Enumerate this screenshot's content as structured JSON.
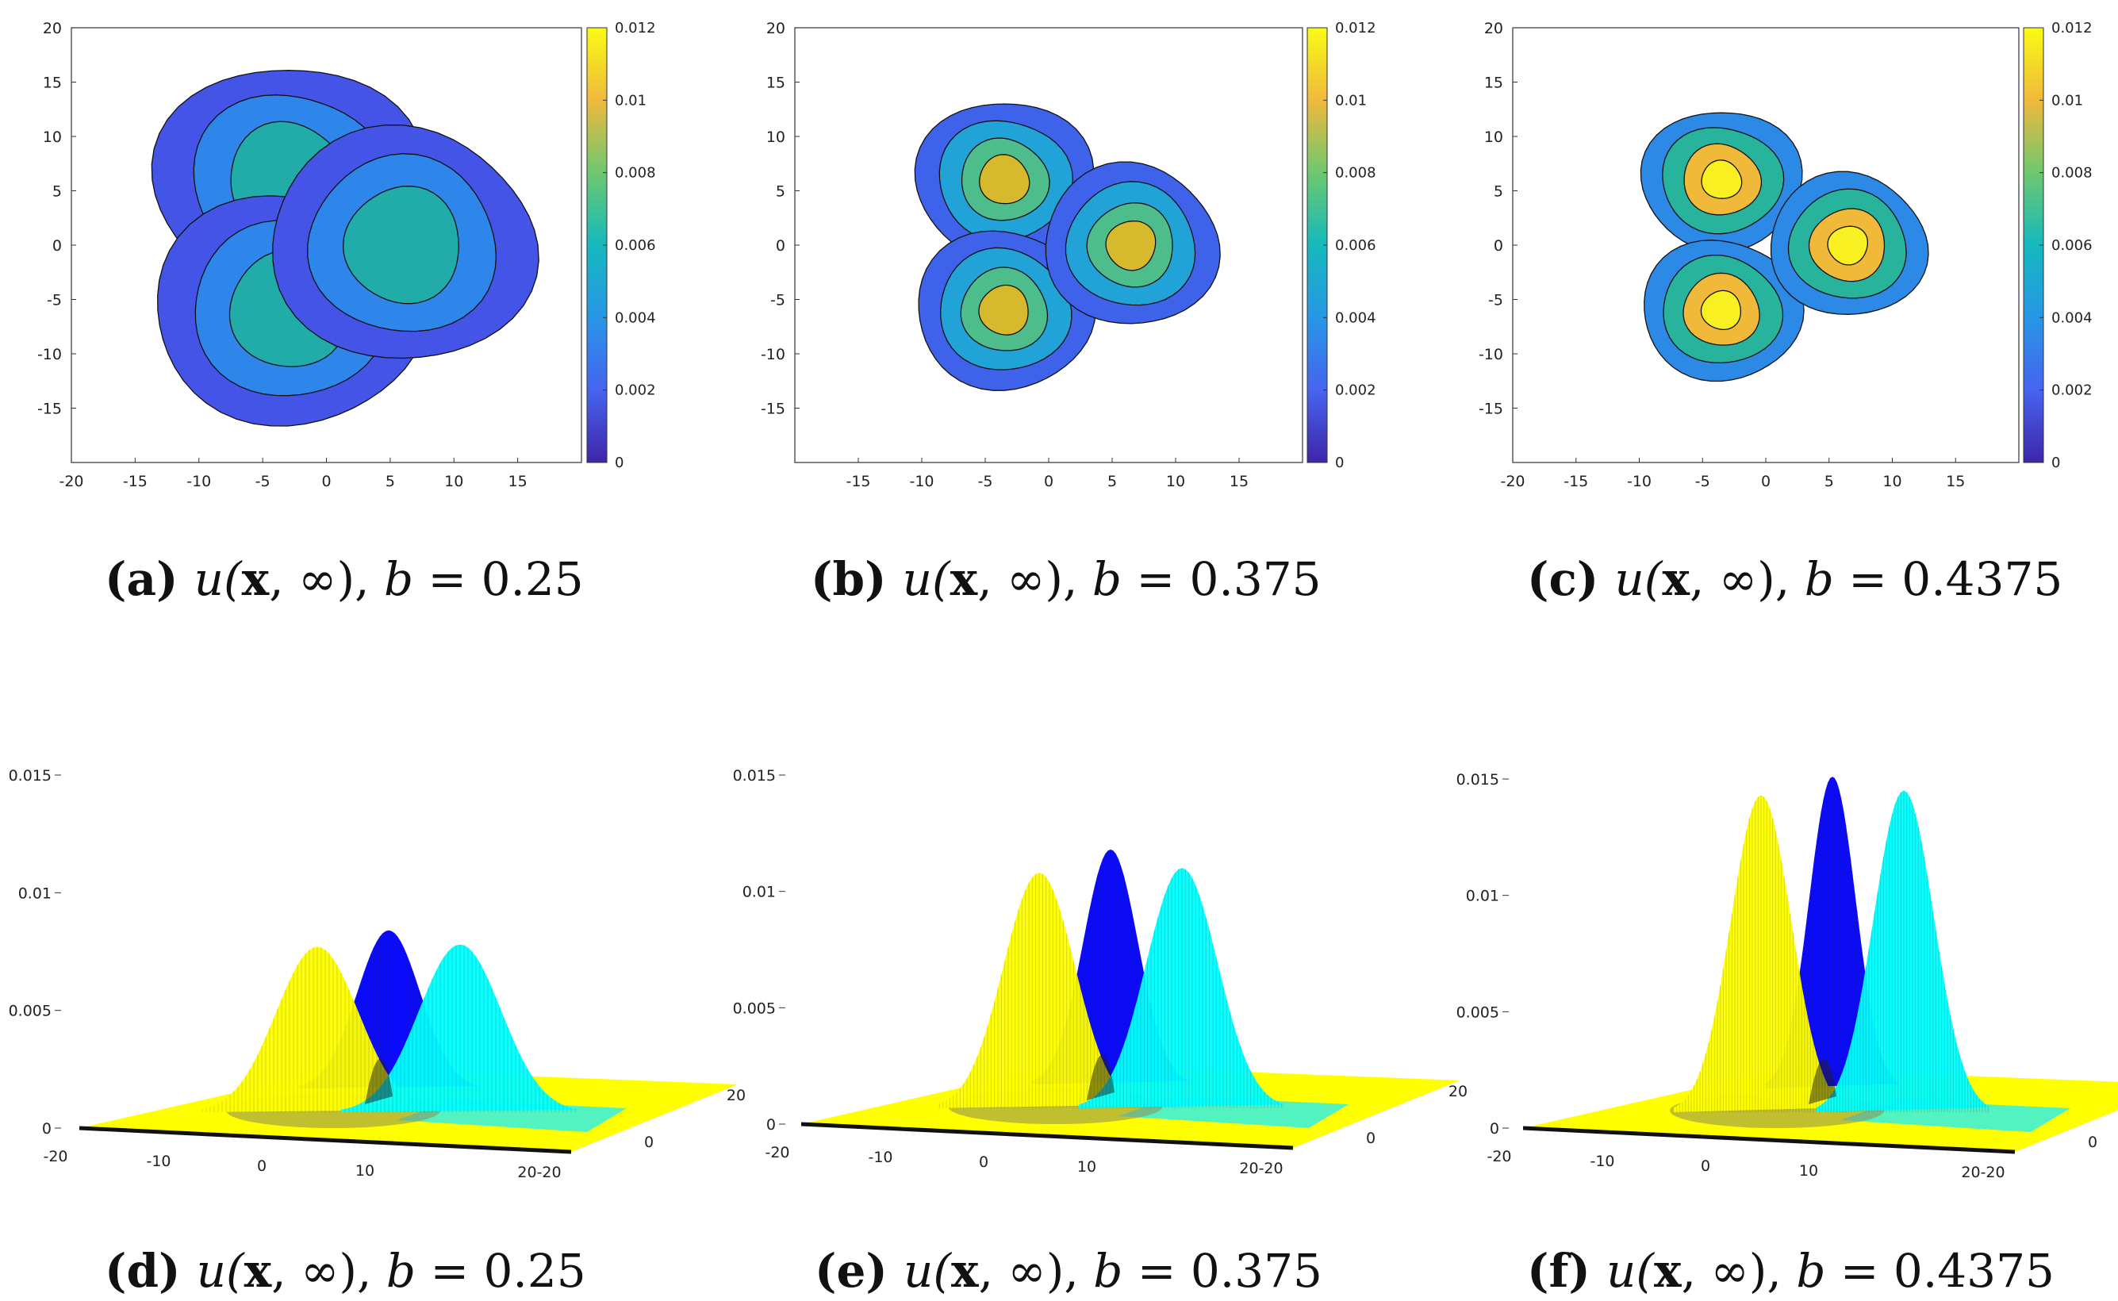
{
  "chart_data": [
    {
      "id": "a",
      "type": "contour",
      "label": "(a)",
      "title_parts": [
        "u(",
        "x",
        ", ∞), ",
        "b",
        " = 0.25"
      ],
      "b": 0.25,
      "xlim": [
        -20,
        20
      ],
      "ylim": [
        -20,
        20
      ],
      "xticks": [
        -20,
        -15,
        -10,
        -5,
        0,
        5,
        10,
        15
      ],
      "yticks": [
        20,
        15,
        10,
        5,
        0,
        -5,
        -10,
        -15
      ],
      "colorbar": {
        "ticks": [
          "0.012",
          "0.01",
          "0.008",
          "0.006",
          "0.004",
          "0.002",
          "0"
        ],
        "range": [
          0,
          0.012
        ]
      },
      "blobs": [
        {
          "center": [
            -3,
            6
          ],
          "levels": [
            0.002,
            0.004,
            0.006
          ]
        },
        {
          "center": [
            -3,
            -6
          ],
          "levels": [
            0.002,
            0.004,
            0.006
          ]
        },
        {
          "center": [
            6,
            0
          ],
          "levels": [
            0.002,
            0.004,
            0.006
          ]
        }
      ]
    },
    {
      "id": "b",
      "type": "contour",
      "label": "(b)",
      "title_parts": [
        "u(",
        "x",
        ", ∞), ",
        "b",
        " = 0.375"
      ],
      "b": 0.375,
      "xlim": [
        -20,
        20
      ],
      "ylim": [
        -20,
        20
      ],
      "xticks": [
        -15,
        -10,
        -5,
        0,
        5,
        10,
        15
      ],
      "yticks": [
        20,
        15,
        10,
        5,
        0,
        -5,
        -10,
        -15
      ],
      "colorbar": {
        "ticks": [
          "0.012",
          "0.01",
          "0.008",
          "0.006",
          "0.004",
          "0.002",
          "0"
        ],
        "range": [
          0,
          0.012
        ]
      },
      "blobs": [
        {
          "center": [
            -3.5,
            6
          ],
          "levels": [
            0.002,
            0.004,
            0.006,
            0.008
          ]
        },
        {
          "center": [
            -3.5,
            -6
          ],
          "levels": [
            0.002,
            0.004,
            0.006,
            0.008
          ]
        },
        {
          "center": [
            6.5,
            0
          ],
          "levels": [
            0.002,
            0.004,
            0.006,
            0.008
          ]
        }
      ]
    },
    {
      "id": "c",
      "type": "contour",
      "label": "(c)",
      "title_parts": [
        "u(",
        "x",
        ", ∞), ",
        "b",
        " = 0.4375"
      ],
      "b": 0.4375,
      "xlim": [
        -20,
        20
      ],
      "ylim": [
        -20,
        20
      ],
      "xticks": [
        -20,
        -15,
        -10,
        -5,
        0,
        5,
        10,
        15
      ],
      "yticks": [
        20,
        15,
        10,
        5,
        0,
        -5,
        -10,
        -15
      ],
      "colorbar": {
        "ticks": [
          "0.012",
          "0.01",
          "0.008",
          "0.006",
          "0.004",
          "0.002",
          "0"
        ],
        "range": [
          0,
          0.012
        ]
      },
      "blobs": [
        {
          "center": [
            -3.5,
            6
          ],
          "levels": [
            0.004,
            0.006,
            0.008,
            0.01
          ]
        },
        {
          "center": [
            -3.5,
            -6
          ],
          "levels": [
            0.004,
            0.006,
            0.008,
            0.01
          ]
        },
        {
          "center": [
            6.5,
            0
          ],
          "levels": [
            0.004,
            0.006,
            0.008,
            0.01
          ]
        }
      ]
    },
    {
      "id": "d",
      "type": "surface3d",
      "label": "(d)",
      "title_parts": [
        "u(",
        "x",
        ", ∞), ",
        "b",
        " = 0.25"
      ],
      "b": 0.25,
      "zlim": [
        0,
        0.015
      ],
      "zticks": [
        "0.015",
        "0.01",
        "0.005",
        "0"
      ],
      "xticks": [
        "-20",
        "-10",
        "0",
        "10",
        "20"
      ],
      "yticks": [
        "-20",
        "0",
        "20"
      ],
      "peaks": [
        {
          "color": "#ffff00",
          "height": 0.0077
        },
        {
          "color": "#0000ff",
          "height": 0.0084
        },
        {
          "color": "#00ffff",
          "height": 0.0078
        }
      ]
    },
    {
      "id": "e",
      "type": "surface3d",
      "label": "(e)",
      "title_parts": [
        "u(",
        "x",
        ", ∞), ",
        "b",
        " = 0.375"
      ],
      "b": 0.375,
      "zlim": [
        0,
        0.015
      ],
      "zticks": [
        "0.015",
        "0.01",
        "0.005",
        "0"
      ],
      "xticks": [
        "-20",
        "-10",
        "0",
        "10",
        "20"
      ],
      "yticks": [
        "-20",
        "0",
        "20"
      ],
      "peaks": [
        {
          "color": "#ffff00",
          "height": 0.0108
        },
        {
          "color": "#0000ff",
          "height": 0.0118
        },
        {
          "color": "#00ffff",
          "height": 0.011
        }
      ]
    },
    {
      "id": "f",
      "type": "surface3d",
      "label": "(f)",
      "title_parts": [
        "u(",
        "x",
        ", ∞), ",
        "b",
        " = 0.4375"
      ],
      "b": 0.4375,
      "zlim": [
        0,
        0.015
      ],
      "zticks": [
        "0.015",
        "0.01",
        "0.005",
        "0"
      ],
      "xticks": [
        "-20",
        "-10",
        "0",
        "10",
        "20"
      ],
      "yticks": [
        "-20",
        "0",
        "20"
      ],
      "peaks": [
        {
          "color": "#ffff00",
          "height": 0.0143
        },
        {
          "color": "#0000ff",
          "height": 0.0151
        },
        {
          "color": "#00ffff",
          "height": 0.0145
        }
      ]
    }
  ]
}
